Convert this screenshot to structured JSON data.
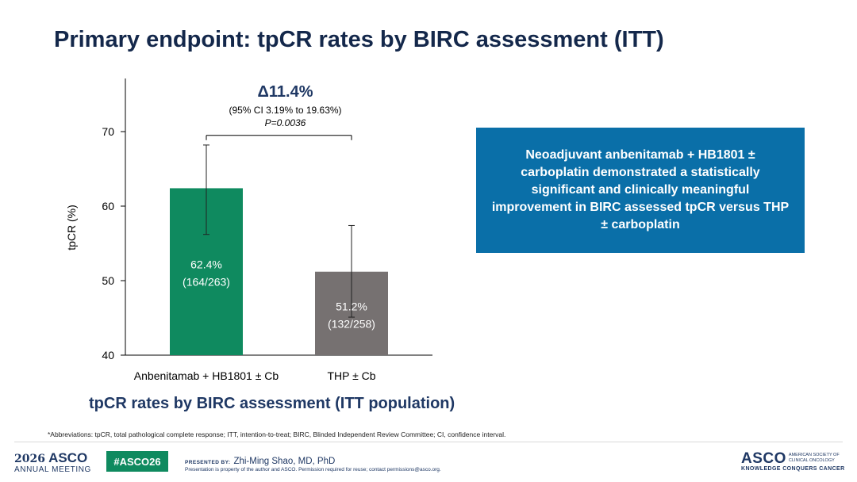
{
  "slide": {
    "title": "Primary endpoint: tpCR rates by BIRC assessment (ITT)",
    "chart_subtitle": "tpCR rates by BIRC assessment (ITT population)",
    "callout_text": "Neoadjuvant anbenitamab + HB1801 ± carboplatin demonstrated a statistically significant and clinically meaningful improvement in BIRC assessed tpCR versus THP ± carboplatin",
    "abbreviations": "*Abbreviations: tpCR, total pathological complete response; ITT, intention-to-treat; BIRC, Blinded Independent Review Committee; CI, confidence interval."
  },
  "chart_data": {
    "type": "bar",
    "ylabel": "tpCR (%)",
    "ylim": [
      40,
      70
    ],
    "yticks": [
      "40",
      "50",
      "60",
      "70"
    ],
    "categories": [
      "Anbenitamab + HB1801 ±  Cb",
      "THP ±  Cb"
    ],
    "values": [
      62.4,
      51.2
    ],
    "error_low": [
      56.2,
      45.1
    ],
    "error_high": [
      68.2,
      57.4
    ],
    "bar_labels": [
      {
        "pct": "62.4%",
        "ratio": "(164/263)"
      },
      {
        "pct": "51.2%",
        "ratio": "(132/258)"
      }
    ],
    "colors": [
      "#0f8a5f",
      "#767171"
    ],
    "bracket_y": 69.5,
    "annotation": {
      "delta": "Δ11.4%",
      "ci": "(95% CI 3.19% to 19.63%)",
      "p": "P=0.0036"
    }
  },
  "footer": {
    "meeting_year": "2026",
    "meeting_brand": "ASCO",
    "meeting_sub": "ANNUAL MEETING",
    "hashtag": "#ASCO26",
    "presented_by_label": "PRESENTED BY:",
    "presenter": "Zhi-Ming Shao, MD, PhD",
    "property_note": "Presentation is property of the author and ASCO. Permission required for reuse; contact permissions@asco.org.",
    "logo_word": "ASCO",
    "logo_small": "AMERICAN SOCIETY OF CLINICAL ONCOLOGY",
    "logo_tagline": "KNOWLEDGE CONQUERS CANCER"
  }
}
